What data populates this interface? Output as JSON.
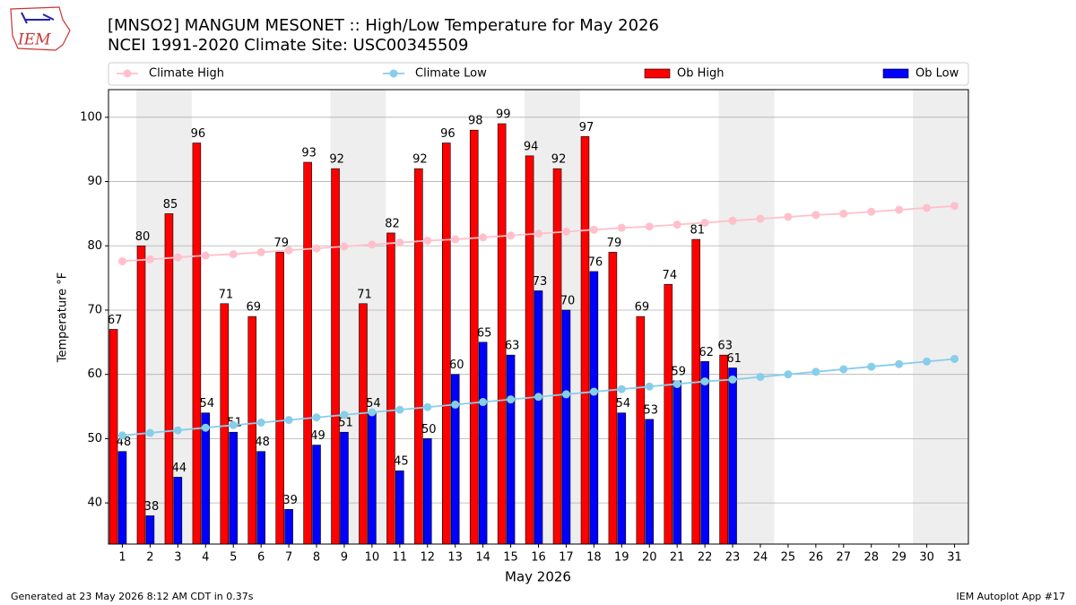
{
  "logo": "IEM",
  "footer_left": "Generated at 23 May 2026 8:12 AM CDT in 0.37s",
  "footer_right": "IEM Autoplot App #17",
  "chart_data": {
    "type": "bar_line",
    "title": "[MNSO2] MANGUM MESONET :: High/Low Temperature for May 2026",
    "subtitle": "NCEI 1991-2020 Climate Site: USC00345509",
    "xlabel": "May 2026",
    "ylabel": "Temperature °F",
    "x": [
      1,
      2,
      3,
      4,
      5,
      6,
      7,
      8,
      9,
      10,
      11,
      12,
      13,
      14,
      15,
      16,
      17,
      18,
      19,
      20,
      21,
      22,
      23,
      24,
      25,
      26,
      27,
      28,
      29,
      30,
      31
    ],
    "xlim": [
      0.5,
      31.5
    ],
    "xticks": [
      1,
      2,
      3,
      4,
      5,
      6,
      7,
      8,
      9,
      10,
      11,
      12,
      13,
      14,
      15,
      16,
      17,
      18,
      19,
      20,
      21,
      22,
      23,
      24,
      25,
      26,
      27,
      28,
      29,
      30,
      31
    ],
    "ylim": [
      33.6,
      104.3
    ],
    "yticks": [
      40,
      50,
      60,
      70,
      80,
      90,
      100
    ],
    "grid": true,
    "legend": "top",
    "weekend_color": "#eeeeee",
    "weekend_bands": [
      [
        1.5,
        3.5
      ],
      [
        8.5,
        10.5
      ],
      [
        15.5,
        17.5
      ],
      [
        22.5,
        24.5
      ],
      [
        29.5,
        31.5
      ]
    ],
    "series": [
      {
        "name": "Climate High",
        "kind": "line",
        "color": "#ffc0cb",
        "values": [
          77.6,
          77.9,
          78.2,
          78.5,
          78.7,
          79.0,
          79.3,
          79.6,
          79.9,
          80.2,
          80.5,
          80.8,
          81.0,
          81.3,
          81.6,
          81.9,
          82.2,
          82.5,
          82.8,
          83.0,
          83.3,
          83.6,
          83.9,
          84.2,
          84.5,
          84.8,
          85.0,
          85.3,
          85.6,
          85.9,
          86.2
        ]
      },
      {
        "name": "Climate Low",
        "kind": "line",
        "color": "#87ceeb",
        "values": [
          50.5,
          50.9,
          51.3,
          51.7,
          52.1,
          52.5,
          52.9,
          53.3,
          53.7,
          54.1,
          54.5,
          54.9,
          55.3,
          55.7,
          56.1,
          56.5,
          56.9,
          57.3,
          57.7,
          58.1,
          58.5,
          58.9,
          59.2,
          59.6,
          60.0,
          60.4,
          60.8,
          61.2,
          61.6,
          62.0,
          62.4
        ]
      },
      {
        "name": "Ob High",
        "kind": "bar",
        "color": "#ff0000",
        "values": [
          67,
          80,
          85,
          96,
          71,
          69,
          79,
          93,
          92,
          71,
          82,
          92,
          96,
          98,
          99,
          94,
          92,
          97,
          79,
          69,
          74,
          81,
          63,
          null,
          null,
          null,
          null,
          null,
          null,
          null,
          null
        ]
      },
      {
        "name": "Ob Low",
        "kind": "bar",
        "color": "#0000ff",
        "values": [
          48,
          38,
          44,
          54,
          51,
          48,
          39,
          49,
          51,
          54,
          45,
          50,
          60,
          65,
          63,
          73,
          70,
          76,
          54,
          53,
          59,
          62,
          61,
          null,
          null,
          null,
          null,
          null,
          null,
          null,
          null
        ]
      }
    ]
  }
}
